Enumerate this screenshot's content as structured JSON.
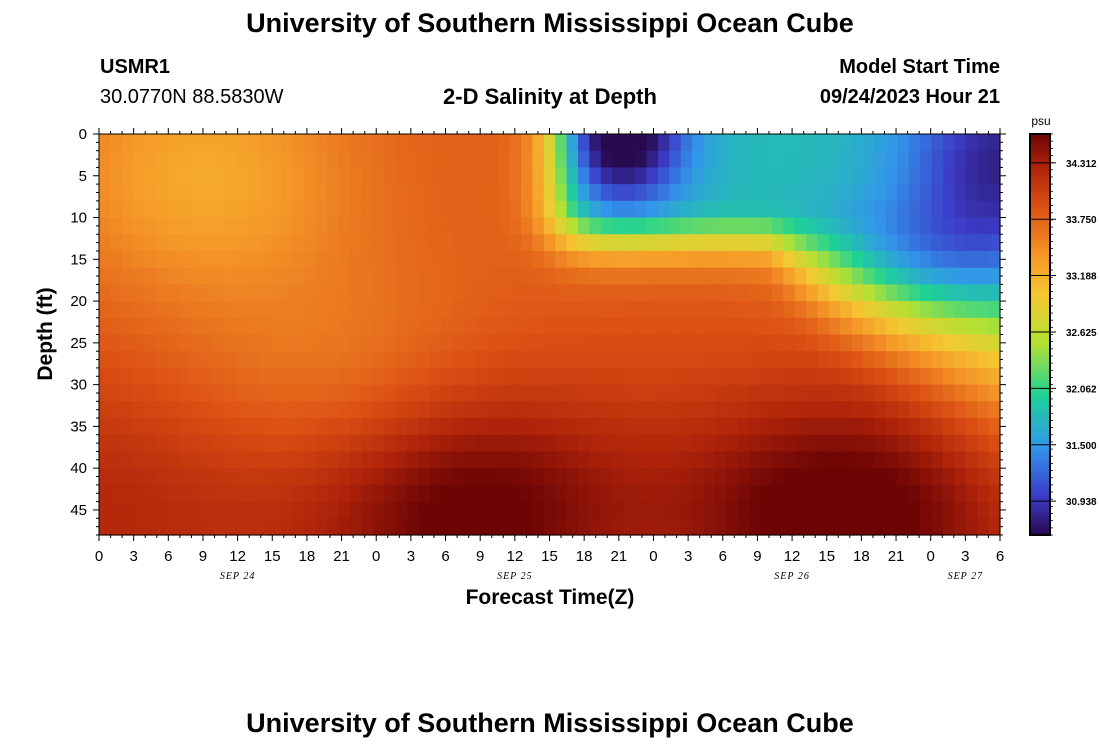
{
  "page": {
    "title": "University of Southern Mississippi Ocean Cube",
    "footer_title": "University of Southern Mississippi Ocean Cube",
    "station_id": "USMR1",
    "station_coords": "30.0770N  88.5830W",
    "subtitle": "2-D Salinity at Depth",
    "model_start_label": "Model Start Time",
    "model_start_value": "09/24/2023 Hour 21"
  },
  "chart_data": {
    "type": "heatmap",
    "title": "2-D Salinity at Depth",
    "xlabel": "Forecast Time(Z)",
    "ylabel": "Depth (ft)",
    "x_tick_labels": [
      "0",
      "3",
      "6",
      "9",
      "12",
      "15",
      "18",
      "21",
      "0",
      "3",
      "6",
      "9",
      "12",
      "15",
      "18",
      "21",
      "0",
      "3",
      "6",
      "9",
      "12",
      "15",
      "18",
      "21",
      "0",
      "3",
      "6"
    ],
    "date_labels": [
      {
        "label": "SEP 24",
        "hours_since_start": 12
      },
      {
        "label": "SEP 25",
        "hours_since_start": 36
      },
      {
        "label": "SEP 26",
        "hours_since_start": 60
      },
      {
        "label": "SEP 27",
        "hours_since_start": 75
      }
    ],
    "x_range_hours": [
      0,
      78
    ],
    "y_tick_labels": [
      "0",
      "5",
      "10",
      "15",
      "20",
      "25",
      "30",
      "35",
      "40",
      "45"
    ],
    "y_range_ft": [
      0,
      48
    ],
    "colorbar": {
      "unit": "psu",
      "range": [
        30.6,
        34.6
      ],
      "tick_labels": [
        "34.312",
        "33.750",
        "33.188",
        "32.625",
        "32.062",
        "31.500",
        "30.938"
      ],
      "tick_values": [
        34.312,
        33.75,
        33.188,
        32.625,
        32.062,
        31.5,
        30.938
      ]
    },
    "grid_resolution": {
      "time_steps": 79,
      "depth_levels": 24
    },
    "salinity_pattern": {
      "base_psu": 33.8,
      "features": [
        {
          "name": "fresh surface plume",
          "center_hours": 45,
          "center_depth_ft": 0,
          "min_psu": 30.7
        },
        {
          "name": "salty bottom core",
          "center_hours": 32,
          "center_depth_ft": 45,
          "max_psu": 34.5
        },
        {
          "name": "salty bottom core",
          "center_hours": 64,
          "center_depth_ft": 45,
          "max_psu": 34.5
        },
        {
          "name": "fresher upper layer",
          "center_hours": 9,
          "center_depth_ft": 5,
          "min_psu": 33.2
        }
      ]
    }
  }
}
